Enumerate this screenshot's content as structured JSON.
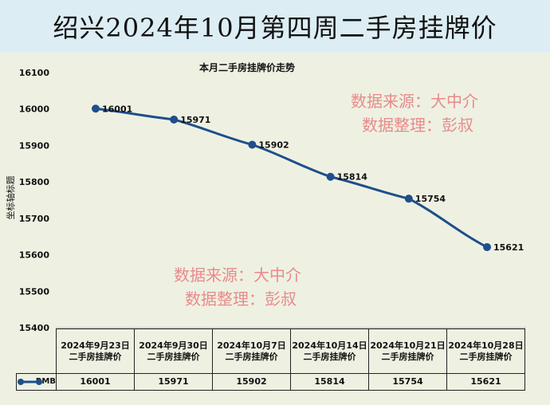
{
  "title": "绍兴2024年10月第四周二手房挂牌价",
  "watermark": {
    "line1": "数据来源：大中介",
    "line2": "数据整理：彭叔"
  },
  "colors": {
    "series": "#1f4e8c",
    "banner": "#dcedf4",
    "background": "#eef1e2",
    "watermark": "#e88a8a"
  },
  "chart_data": {
    "type": "line",
    "title": "本月二手房挂牌价走势",
    "ylabel": "坐标轴标题",
    "ylim": [
      15400,
      16100
    ],
    "yticks": [
      16100,
      16000,
      15900,
      15800,
      15700,
      15600,
      15500,
      15400
    ],
    "categories": [
      "2024年9月23日二手房挂牌价",
      "2024年9月30日二手房挂牌价",
      "2024年10月7日二手房挂牌价",
      "2024年10月14日二手房挂牌价",
      "2024年10月21日二手房挂牌价",
      "2024年10月28日二手房挂牌价"
    ],
    "series": [
      {
        "name": "RMB",
        "values": [
          16001,
          15971,
          15902,
          15814,
          15754,
          15621
        ]
      }
    ],
    "grid": false,
    "legend": "data-table"
  }
}
